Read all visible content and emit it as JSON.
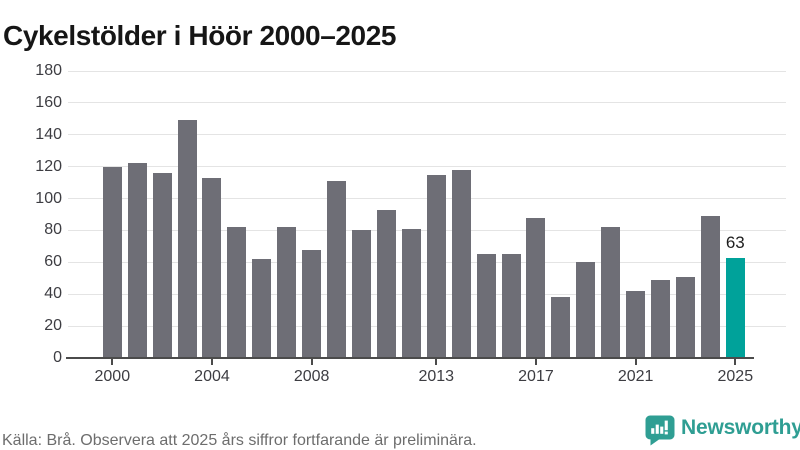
{
  "title": "Cykelstölder i Höör 2000–2025",
  "footer": {
    "source_note": "Källa: Brå. Observera att 2025 års siffror fortfarande är preliminära."
  },
  "branding": {
    "wordmark": "Newsworthy",
    "icon": "newsworthy-bar-chart-bubble-icon",
    "color": "#2f9e93"
  },
  "colors": {
    "bar": "#6e6e76",
    "highlight": "#00a29a",
    "gridline": "#e4e4e4",
    "axis": "#4b4b4b",
    "tick_label": "#3d3d42",
    "title_text": "#161616",
    "footer_text": "#6d6d6d"
  },
  "chart_data": {
    "type": "bar",
    "title": "Cykelstölder i Höör 2000–2025",
    "xlabel": "",
    "ylabel": "",
    "ylim": [
      0,
      180
    ],
    "grid": "horizontal",
    "legend": "none",
    "years": [
      2000,
      2001,
      2002,
      2003,
      2004,
      2005,
      2006,
      2007,
      2008,
      2009,
      2010,
      2011,
      2012,
      2013,
      2014,
      2015,
      2016,
      2017,
      2018,
      2019,
      2020,
      2021,
      2022,
      2023,
      2024,
      2025
    ],
    "values": [
      120,
      122,
      116,
      149,
      113,
      82,
      62,
      82,
      68,
      111,
      80,
      93,
      81,
      115,
      118,
      65,
      65,
      88,
      38,
      60,
      82,
      42,
      49,
      51,
      89,
      63
    ],
    "highlight_year": 2025,
    "y_ticks": [
      0,
      20,
      40,
      60,
      80,
      100,
      120,
      140,
      160,
      180
    ],
    "x_tick_years": [
      2000,
      2004,
      2008,
      2013,
      2017,
      2021,
      2025
    ],
    "x_tick_labels": [
      "2000",
      "2004",
      "2008",
      "2013",
      "2017",
      "2021",
      "2025"
    ],
    "annotations": [
      {
        "year": 2025,
        "text": "63"
      }
    ]
  }
}
